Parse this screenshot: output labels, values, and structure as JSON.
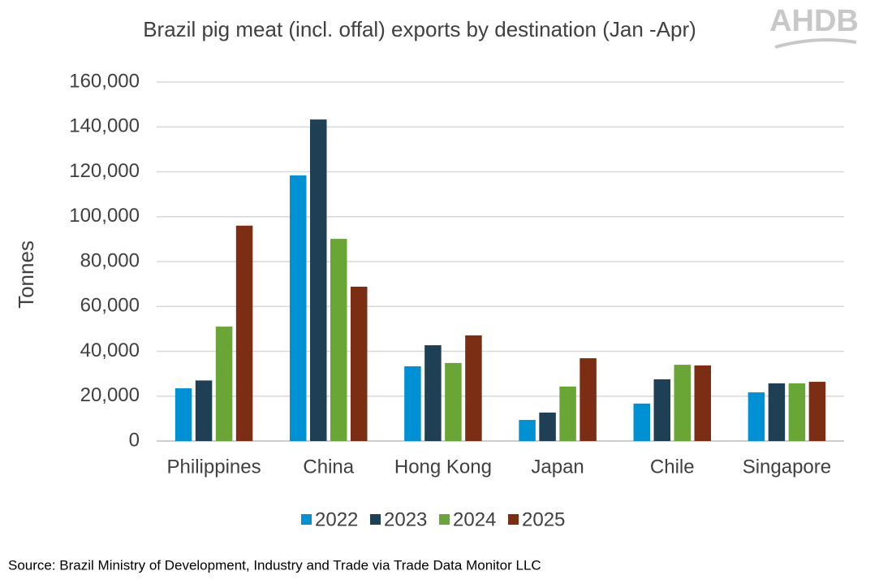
{
  "chart_data": {
    "type": "bar",
    "title": "Brazil pig meat (incl. offal) exports by destination (Jan -Apr)",
    "logo": "AHDB",
    "y_label": "Tonnes",
    "source": "Source: Brazil Ministry of Development, Industry and Trade via Trade Data Monitor LLC",
    "categories": [
      "Philippines",
      "China",
      "Hong Kong",
      "Japan",
      "Chile",
      "Singapore"
    ],
    "series": [
      {
        "name": "2022",
        "color": "#0090d4",
        "values": [
          23500,
          118400,
          33300,
          9400,
          16700,
          21700
        ]
      },
      {
        "name": "2023",
        "color": "#1f3f55",
        "values": [
          27000,
          143300,
          42700,
          12700,
          27500,
          25700
        ]
      },
      {
        "name": "2024",
        "color": "#6aa636",
        "values": [
          51000,
          90100,
          34800,
          24300,
          34000,
          25700
        ]
      },
      {
        "name": "2025",
        "color": "#7b2e14",
        "values": [
          96000,
          68800,
          47100,
          36900,
          33700,
          26400
        ]
      }
    ],
    "ylim": [
      0,
      160000
    ],
    "yticks": [
      0,
      {
        "value": 20000,
        "label": "20,000"
      },
      {
        "value": 40000,
        "label": "40,000"
      },
      {
        "value": 60000,
        "label": "60,000"
      },
      {
        "value": 80000,
        "label": "80,000"
      },
      {
        "value": 100000,
        "label": "100,000"
      },
      {
        "value": 120000,
        "label": "120,000"
      },
      {
        "value": 140000,
        "label": "140,000"
      },
      {
        "value": 160000,
        "label": "160,000"
      }
    ],
    "grid": true,
    "legend": "bottom"
  }
}
